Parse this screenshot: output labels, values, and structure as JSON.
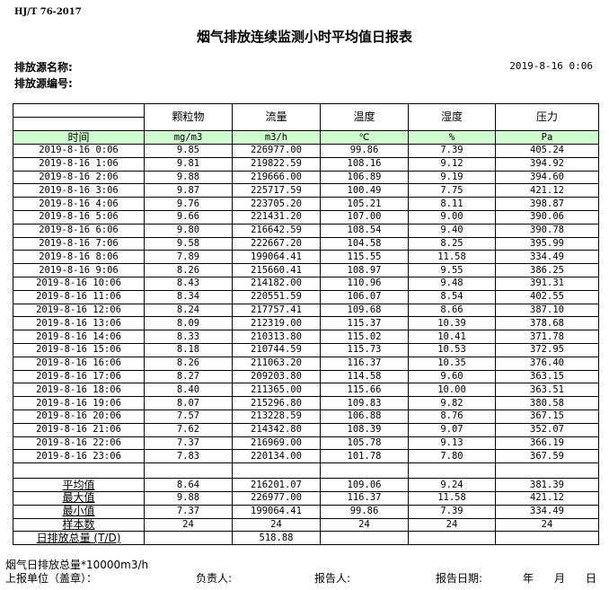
{
  "header": {
    "standard": "HJ/T  76-2017",
    "title": "烟气排放连续监测小时平均值日报表",
    "source_name_label": "排放源名称:",
    "source_code_label": "排放源编号:",
    "report_datetime": "2019-8-16 0:06"
  },
  "table": {
    "columns": [
      "颗粒物",
      "流量",
      "温度",
      "湿度",
      "压力"
    ],
    "time_label": "时间",
    "units": [
      "mg/m3",
      "m3/h",
      "℃",
      "%",
      "Pa"
    ],
    "rows": [
      [
        "2019-8-16 0:06",
        "9.85",
        "226977.00",
        "99.86",
        "7.39",
        "405.24"
      ],
      [
        "2019-8-16 1:06",
        "9.81",
        "219822.59",
        "108.16",
        "9.12",
        "394.92"
      ],
      [
        "2019-8-16 2:06",
        "9.88",
        "219666.00",
        "106.89",
        "9.19",
        "394.60"
      ],
      [
        "2019-8-16 3:06",
        "9.87",
        "225717.59",
        "100.49",
        "7.75",
        "421.12"
      ],
      [
        "2019-8-16 4:06",
        "9.76",
        "223705.20",
        "105.21",
        "8.11",
        "398.87"
      ],
      [
        "2019-8-16 5:06",
        "9.66",
        "221431.20",
        "107.00",
        "9.00",
        "390.06"
      ],
      [
        "2019-8-16 6:06",
        "9.80",
        "216642.59",
        "108.54",
        "9.40",
        "390.78"
      ],
      [
        "2019-8-16 7:06",
        "9.58",
        "222667.20",
        "104.58",
        "8.25",
        "395.99"
      ],
      [
        "2019-8-16 8:06",
        "7.89",
        "199064.41",
        "115.55",
        "11.58",
        "334.49"
      ],
      [
        "2019-8-16 9:06",
        "8.26",
        "215660.41",
        "108.97",
        "9.55",
        "386.25"
      ],
      [
        "2019-8-16 10:06",
        "8.43",
        "214182.00",
        "110.96",
        "9.48",
        "391.31"
      ],
      [
        "2019-8-16 11:06",
        "8.34",
        "220551.59",
        "106.07",
        "8.54",
        "402.55"
      ],
      [
        "2019-8-16 12:06",
        "8.24",
        "217757.41",
        "109.68",
        "8.66",
        "387.10"
      ],
      [
        "2019-8-16 13:06",
        "8.09",
        "212319.00",
        "115.37",
        "10.39",
        "378.68"
      ],
      [
        "2019-8-16 14:06",
        "8.33",
        "210313.80",
        "115.02",
        "10.41",
        "371.78"
      ],
      [
        "2019-8-16 15:06",
        "8.18",
        "210744.59",
        "115.73",
        "10.53",
        "372.95"
      ],
      [
        "2019-8-16 16:06",
        "8.26",
        "211063.20",
        "116.37",
        "10.35",
        "376.40"
      ],
      [
        "2019-8-16 17:06",
        "8.27",
        "209203.80",
        "114.58",
        "9.60",
        "363.15"
      ],
      [
        "2019-8-16 18:06",
        "8.40",
        "211365.00",
        "115.66",
        "10.00",
        "363.51"
      ],
      [
        "2019-8-16 19:06",
        "8.07",
        "215296.80",
        "109.83",
        "9.82",
        "380.58"
      ],
      [
        "2019-8-16 20:06",
        "7.57",
        "213228.59",
        "106.88",
        "8.76",
        "367.15"
      ],
      [
        "2019-8-16 21:06",
        "7.62",
        "214342.80",
        "108.39",
        "9.07",
        "352.07"
      ],
      [
        "2019-8-16 22:06",
        "7.37",
        "216969.00",
        "105.78",
        "9.13",
        "366.19"
      ],
      [
        "2019-8-16 23:06",
        "7.83",
        "220134.00",
        "101.78",
        "7.80",
        "367.59"
      ]
    ],
    "stats": [
      [
        "平均值",
        "8.64",
        "216201.07",
        "109.06",
        "9.24",
        "381.39"
      ],
      [
        "最大值",
        "9.88",
        "226977.00",
        "116.37",
        "11.58",
        "421.12"
      ],
      [
        "最小值",
        "7.37",
        "199064.41",
        "99.86",
        "7.39",
        "334.49"
      ],
      [
        "样本数",
        "24",
        "24",
        "24",
        "24",
        "24"
      ],
      [
        "日排放总量 (T/D)",
        "",
        "518.88",
        "",
        "",
        ""
      ]
    ]
  },
  "footer": {
    "note": "烟气日排放总量*10000m3/h",
    "unit_label": "上报单位（盖章）：",
    "manager_label": "负责人:",
    "reporter_label": "报告人:",
    "report_date_label": "报告日期:",
    "year": "年",
    "month": "月",
    "day": "日"
  }
}
